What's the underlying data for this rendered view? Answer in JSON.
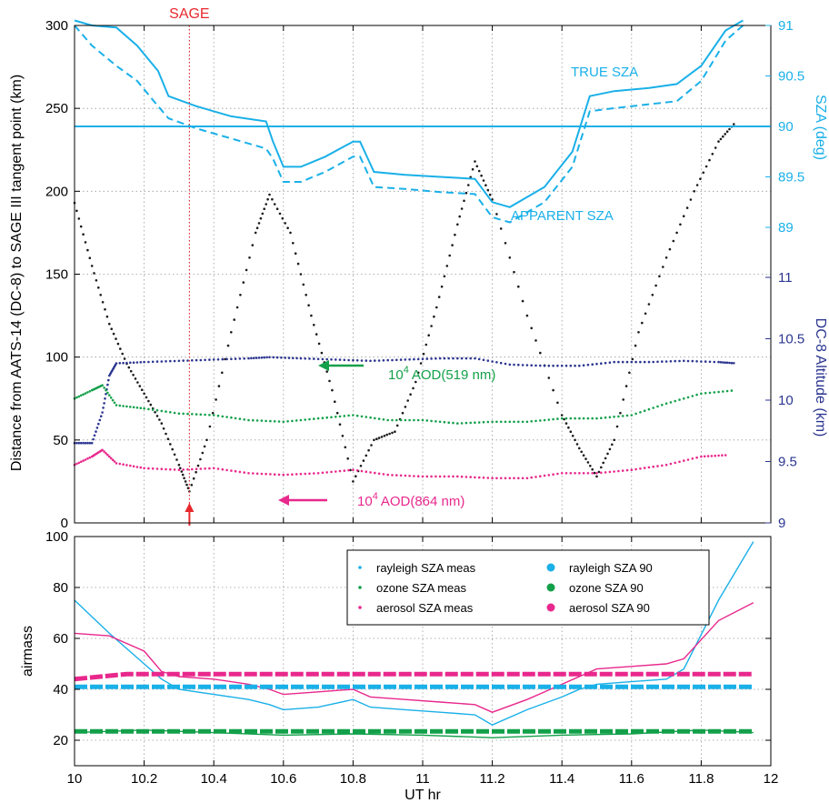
{
  "colors": {
    "distance": "#1a1a1a",
    "sza": "#1ab0e8",
    "altitude": "#2b3590",
    "aod519": "#13a04a",
    "aod864": "#e8288c",
    "sage": "#e8282d",
    "grid": "#9a9a9a"
  },
  "chart_data": [
    {
      "type": "line",
      "xlabel": "",
      "x_range": [
        10,
        12
      ],
      "x_ticks": [
        "10",
        "10.2",
        "10.4",
        "10.6",
        "10.8",
        "11",
        "11.2",
        "11.4",
        "11.6",
        "11.8",
        "12"
      ],
      "ylabel": "Distance from AATS-14 (DC-8) to SAGE III tangent point (km)",
      "y_range": [
        0,
        300
      ],
      "y_ticks": [
        "0",
        "50",
        "100",
        "150",
        "200",
        "250",
        "300"
      ],
      "right_axis_sza": {
        "label": "SZA (deg)",
        "range": [
          89,
          91
        ],
        "ticks": [
          "89",
          "89.5",
          "90",
          "90.5",
          "91"
        ]
      },
      "right_axis_altitude": {
        "label": "DC-8 Altitude (km)",
        "range": [
          9,
          11
        ],
        "ticks": [
          "9",
          "9.5",
          "10",
          "10.5",
          "11"
        ]
      },
      "grid": true,
      "annotations": {
        "sage": "SAGE",
        "sage_time": 10.33,
        "true_sza": "TRUE SZA",
        "apparent_sza": "APPARENT SZA",
        "aod519_label": "AOD(519 nm)",
        "aod864_label": "AOD(864 nm)",
        "aod_prefix": "10",
        "aod_exponent": "4"
      },
      "series": [
        {
          "key": "distance",
          "axis": "left",
          "style": "dots",
          "x": [
            10.0,
            10.05,
            10.1,
            10.15,
            10.2,
            10.25,
            10.3,
            10.33,
            10.38,
            10.45,
            10.52,
            10.56,
            10.62,
            10.68,
            10.74,
            10.8,
            10.86,
            10.92,
            10.98,
            11.04,
            11.1,
            11.15,
            11.2,
            11.3,
            11.4,
            11.45,
            11.5,
            11.55,
            11.62,
            11.7,
            11.78,
            11.85,
            11.9
          ],
          "y": [
            193,
            155,
            120,
            96,
            78,
            60,
            35,
            19,
            50,
            115,
            175,
            198,
            175,
            125,
            80,
            25,
            50,
            55,
            85,
            130,
            180,
            218,
            195,
            125,
            65,
            45,
            28,
            50,
            115,
            160,
            200,
            230,
            242
          ]
        },
        {
          "key": "true_sza",
          "axis": "sza",
          "style": "solid",
          "x": [
            10.0,
            10.05,
            10.12,
            10.18,
            10.24,
            10.27,
            10.35,
            10.45,
            10.55,
            10.57,
            10.6,
            10.65,
            10.72,
            10.8,
            10.82,
            10.86,
            10.95,
            11.05,
            11.15,
            11.2,
            11.25,
            11.35,
            11.43,
            11.48,
            11.55,
            11.65,
            11.73,
            11.8,
            11.87,
            11.92
          ],
          "y": [
            91.05,
            91.0,
            90.98,
            90.8,
            90.55,
            90.3,
            90.2,
            90.1,
            90.05,
            89.85,
            89.6,
            89.6,
            89.7,
            89.85,
            89.85,
            89.55,
            89.52,
            89.5,
            89.48,
            89.25,
            89.2,
            89.4,
            89.75,
            90.3,
            90.35,
            90.38,
            90.42,
            90.6,
            90.95,
            91.05
          ]
        },
        {
          "key": "apparent_sza",
          "axis": "sza",
          "style": "dashed",
          "x": [
            10.0,
            10.05,
            10.12,
            10.18,
            10.24,
            10.27,
            10.35,
            10.45,
            10.55,
            10.57,
            10.6,
            10.65,
            10.72,
            10.8,
            10.82,
            10.86,
            10.95,
            11.05,
            11.15,
            11.2,
            11.25,
            11.35,
            11.43,
            11.48,
            11.55,
            11.65,
            11.73,
            11.8,
            11.87,
            11.92
          ],
          "y": [
            91.0,
            90.8,
            90.6,
            90.45,
            90.2,
            90.08,
            89.98,
            89.88,
            89.78,
            89.68,
            89.45,
            89.45,
            89.55,
            89.7,
            89.7,
            89.4,
            89.38,
            89.35,
            89.33,
            89.1,
            89.05,
            89.25,
            89.6,
            90.15,
            90.18,
            90.22,
            90.25,
            90.45,
            90.85,
            91.0
          ]
        },
        {
          "key": "sza90",
          "axis": "sza",
          "style": "solid",
          "x": [
            10.0,
            12.0
          ],
          "y": [
            90.0,
            90.0
          ]
        },
        {
          "key": "altitude",
          "axis": "altitude",
          "style": "dots",
          "x": [
            10.0,
            10.05,
            10.08,
            10.1,
            10.12,
            10.2,
            10.3,
            10.4,
            10.5,
            10.56,
            10.65,
            10.75,
            10.85,
            10.95,
            11.05,
            11.15,
            11.25,
            11.35,
            11.45,
            11.55,
            11.65,
            11.75,
            11.85,
            11.9
          ],
          "y": [
            9.65,
            9.65,
            9.9,
            10.2,
            10.3,
            10.31,
            10.32,
            10.33,
            10.34,
            10.35,
            10.34,
            10.33,
            10.32,
            10.33,
            10.34,
            10.34,
            10.29,
            10.28,
            10.28,
            10.31,
            10.31,
            10.32,
            10.31,
            10.3
          ]
        },
        {
          "key": "aod519",
          "axis": "left",
          "style": "dots",
          "x": [
            10.0,
            10.05,
            10.08,
            10.12,
            10.2,
            10.3,
            10.4,
            10.5,
            10.6,
            10.7,
            10.8,
            10.9,
            11.0,
            11.1,
            11.2,
            11.3,
            11.4,
            11.5,
            11.6,
            11.7,
            11.8,
            11.9
          ],
          "y": [
            75,
            80,
            83,
            71,
            69,
            66,
            65,
            62,
            61,
            63,
            65,
            62,
            62,
            60,
            61,
            61,
            63,
            63,
            65,
            72,
            78,
            80
          ]
        },
        {
          "key": "aod864",
          "axis": "left",
          "style": "dots",
          "x": [
            10.0,
            10.05,
            10.08,
            10.12,
            10.2,
            10.3,
            10.4,
            10.5,
            10.6,
            10.7,
            10.8,
            10.9,
            11.0,
            11.1,
            11.2,
            11.3,
            11.4,
            11.5,
            11.6,
            11.7,
            11.8,
            11.88
          ],
          "y": [
            35,
            40,
            44,
            36,
            33,
            32,
            33,
            30,
            29,
            30,
            32,
            29,
            28,
            28,
            27,
            27,
            30,
            30,
            32,
            35,
            40,
            41
          ]
        }
      ]
    },
    {
      "type": "line",
      "xlabel": "UT hr",
      "x_range": [
        10,
        12
      ],
      "x_ticks": [
        "10",
        "10.2",
        "10.4",
        "10.6",
        "10.8",
        "11",
        "11.2",
        "11.4",
        "11.6",
        "11.8",
        "12"
      ],
      "ylabel": "airmass",
      "y_range": [
        10,
        100
      ],
      "y_ticks": [
        "20",
        "40",
        "60",
        "80",
        "100"
      ],
      "grid": true,
      "legend": "top-right",
      "series": [
        {
          "name": "rayleigh SZA meas",
          "key": "ray_meas",
          "style": "thin",
          "x": [
            10.0,
            10.1,
            10.2,
            10.25,
            10.3,
            10.4,
            10.5,
            10.56,
            10.6,
            10.7,
            10.8,
            10.85,
            10.95,
            11.05,
            11.15,
            11.2,
            11.3,
            11.4,
            11.45,
            11.5,
            11.6,
            11.7,
            11.75,
            11.85,
            11.95
          ],
          "y": [
            75,
            62,
            50,
            44,
            40,
            38,
            36,
            34,
            32,
            33,
            36,
            33,
            32,
            31,
            30,
            26,
            32,
            37,
            40,
            42,
            43,
            44,
            48,
            75,
            98
          ]
        },
        {
          "name": "ozone SZA meas",
          "key": "oz_meas",
          "style": "thin",
          "x": [
            10.0,
            10.2,
            10.4,
            10.6,
            10.8,
            11.0,
            11.2,
            11.4,
            11.6,
            11.8,
            11.95
          ],
          "y": [
            23,
            24,
            23,
            22,
            22.5,
            22,
            21,
            22,
            22.5,
            24,
            23
          ]
        },
        {
          "name": "aerosol SZA meas",
          "key": "aer_meas",
          "style": "thin",
          "x": [
            10.0,
            10.1,
            10.2,
            10.25,
            10.3,
            10.4,
            10.5,
            10.56,
            10.6,
            10.7,
            10.8,
            10.85,
            10.95,
            11.05,
            11.15,
            11.2,
            11.3,
            11.4,
            11.45,
            11.5,
            11.6,
            11.7,
            11.75,
            11.85,
            11.95
          ],
          "y": [
            62,
            61,
            55,
            47,
            45,
            44,
            42,
            40,
            38,
            39,
            40,
            37,
            36,
            35,
            34,
            31,
            36,
            42,
            45,
            48,
            49,
            50,
            52,
            67,
            74
          ]
        },
        {
          "name": "rayleigh SZA 90",
          "key": "ray_90",
          "style": "thick",
          "x": [
            10.0,
            11.95
          ],
          "y": [
            41,
            41
          ]
        },
        {
          "name": "ozone SZA 90",
          "key": "oz_90",
          "style": "thick",
          "x": [
            10.0,
            11.95
          ],
          "y": [
            23.5,
            23.5
          ]
        },
        {
          "name": "aerosol SZA 90",
          "key": "aer_90",
          "style": "thick",
          "x": [
            10.0,
            10.15,
            11.95
          ],
          "y": [
            44,
            46,
            46
          ]
        }
      ]
    }
  ]
}
